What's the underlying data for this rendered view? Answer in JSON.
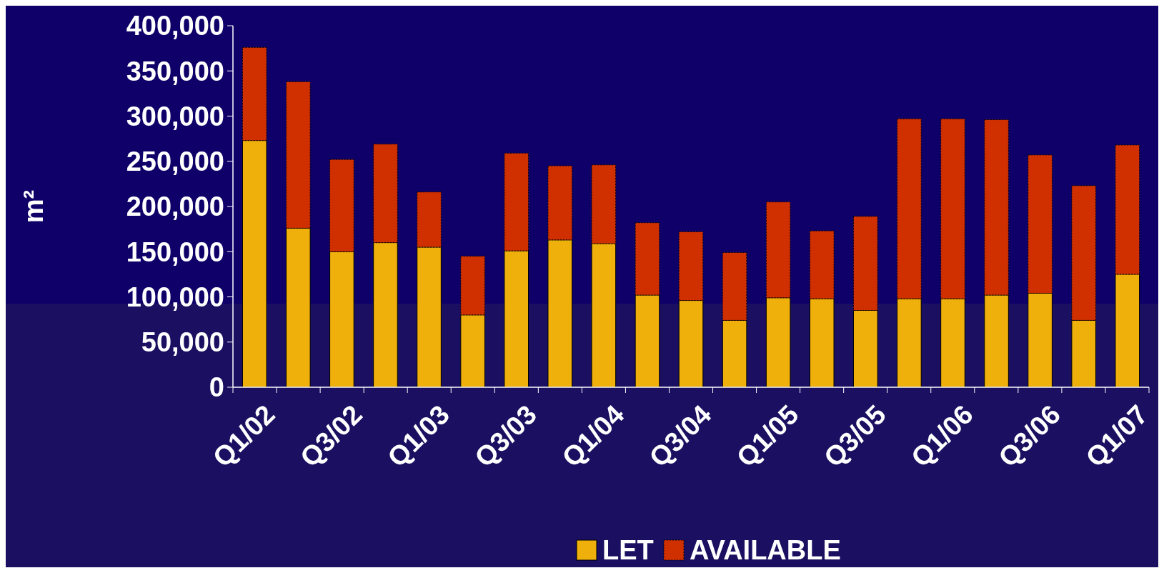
{
  "chart_data": {
    "type": "bar",
    "stacked": true,
    "ylabel": "m²",
    "legend": "bottom",
    "grid": false,
    "categories": [
      "Q1/02",
      null,
      "Q3/02",
      null,
      "Q1/03",
      null,
      "Q3/03",
      null,
      "Q1/04",
      null,
      "Q3/04",
      null,
      "Q1/05",
      null,
      "Q3/05",
      null,
      "Q1/06",
      null,
      "Q3/06",
      null,
      "Q1/07"
    ],
    "ylim": [
      0,
      400000
    ],
    "yticks": [
      {
        "value": 0,
        "label": "0"
      },
      {
        "value": 50000,
        "label": "50,000"
      },
      {
        "value": 100000,
        "label": "100,000"
      },
      {
        "value": 150000,
        "label": "150,000"
      },
      {
        "value": 200000,
        "label": "200,000"
      },
      {
        "value": 250000,
        "label": "250,000"
      },
      {
        "value": 300000,
        "label": "300,000"
      },
      {
        "value": 350000,
        "label": "350,000"
      },
      {
        "value": 400000,
        "label": "400,000"
      }
    ],
    "series": [
      {
        "name": "LET",
        "color": "#f0b00c",
        "values": [
          273000,
          176000,
          150000,
          160000,
          155000,
          80000,
          151000,
          163000,
          159000,
          102000,
          96000,
          74000,
          99000,
          98000,
          85000,
          98000,
          98000,
          102000,
          104000,
          74000,
          125000
        ]
      },
      {
        "name": "AVAILABLE",
        "color": "#d03000",
        "values": [
          103000,
          162000,
          102000,
          109000,
          61000,
          65000,
          108000,
          82000,
          87000,
          80000,
          76000,
          75000,
          106000,
          75000,
          104000,
          199000,
          199000,
          194000,
          153000,
          149000,
          143000
        ]
      }
    ]
  }
}
